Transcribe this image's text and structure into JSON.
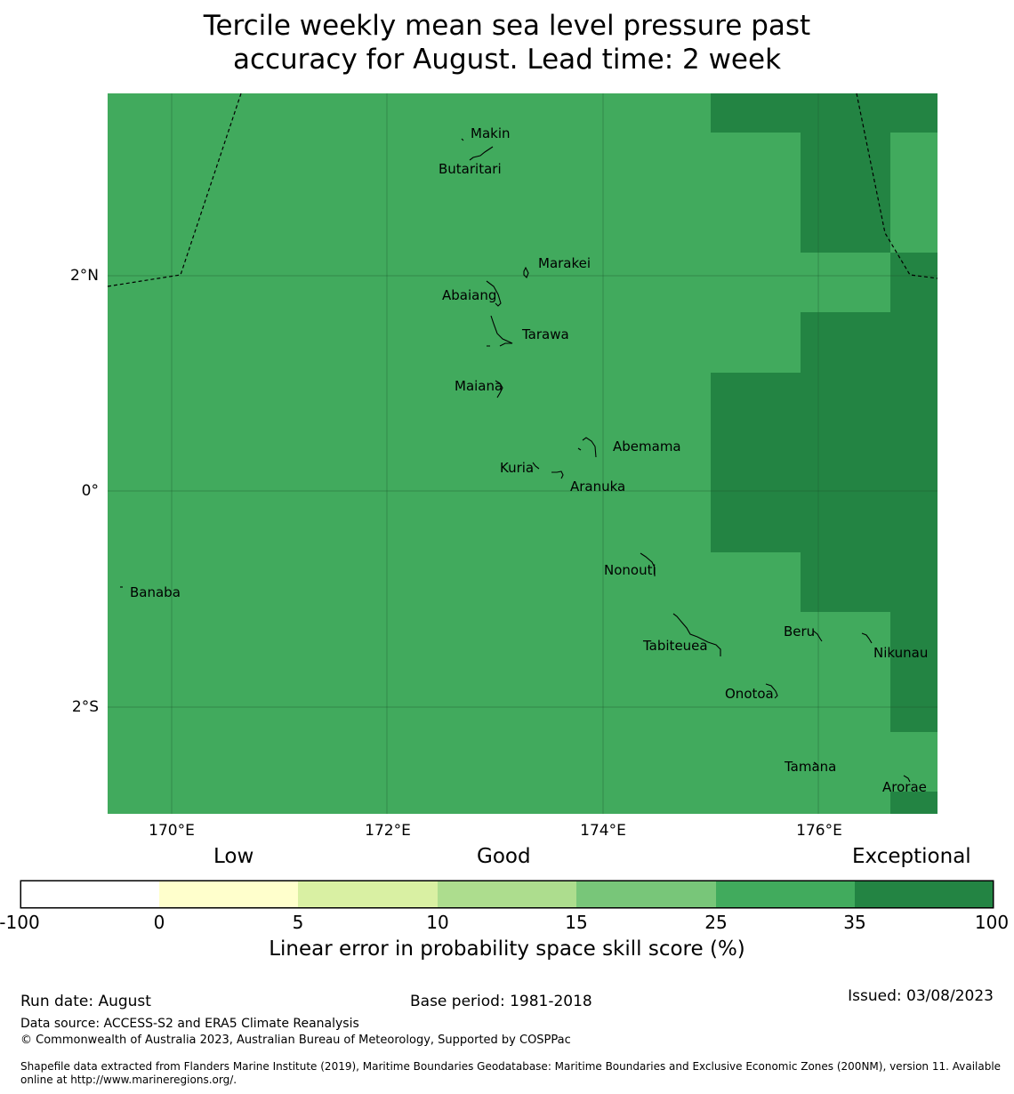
{
  "title_lines": [
    "Tercile weekly mean sea level pressure past",
    "accuracy for August. Lead time: 2 week"
  ],
  "map": {
    "base_color": "#41aa5d",
    "exceptional_color": "#238443",
    "longitude_ticks": [
      "170°E",
      "172°E",
      "174°E",
      "176°E"
    ],
    "latitude_ticks": [
      "2°N",
      "0°",
      "2°S"
    ],
    "islands": [
      "Makin",
      "Butaritari",
      "Marakei",
      "Abaiang",
      "Tarawa",
      "Maiana",
      "Abemama",
      "Kuria",
      "Aranuka",
      "Nonouti",
      "Banaba",
      "Tabiteuea",
      "Beru",
      "Nikunau",
      "Onotoa",
      "Tamana",
      "Arorae"
    ]
  },
  "colorbar": {
    "categories": [
      "Low",
      "Good",
      "Exceptional"
    ],
    "ticks": [
      "-100",
      "0",
      "5",
      "10",
      "15",
      "25",
      "35",
      "100"
    ],
    "colors": [
      "#ffffff",
      "#ffffcc",
      "#d9f0a3",
      "#addd8e",
      "#78c679",
      "#41ab5d",
      "#238443"
    ],
    "label": "Linear error in probability space skill score (%)"
  },
  "footer": {
    "run_date": "Run date: August",
    "base_period": "Base period: 1981-2018",
    "issued": "Issued: 03/08/2023",
    "data_source": "Data source: ACCESS-S2 and ERA5 Climate Reanalysis",
    "copyright": "© Commonwealth of Australia 2023, Australian Bureau of Meteorology, Supported by COSPPac",
    "shapefile_line1": "Shapefile data extracted from Flanders Marine Institute (2019), Maritime Boundaries Geodatabase: Maritime Boundaries and Exclusive Economic Zones (200NM), version 11. Available",
    "shapefile_line2": "online at http://www.marineregions.org/."
  }
}
